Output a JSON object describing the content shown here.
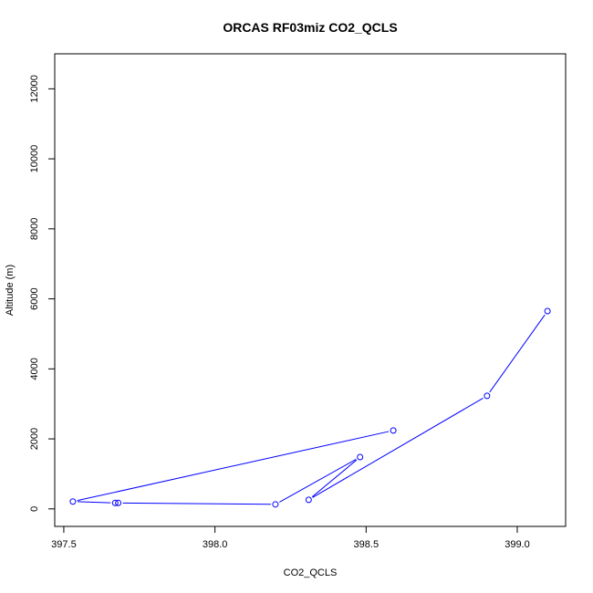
{
  "chart_data": {
    "type": "line",
    "title": "ORCAS RF03miz CO2_QCLS",
    "xlabel": "CO2_QCLS",
    "ylabel": "Altitude (m)",
    "xlim": [
      397.47,
      399.16
    ],
    "ylim": [
      -500,
      13000
    ],
    "xticks": [
      397.5,
      398.0,
      398.5,
      399.0
    ],
    "xtick_labels": [
      "397.5",
      "398.0",
      "398.5",
      "399.0"
    ],
    "yticks": [
      0,
      2000,
      4000,
      6000,
      8000,
      10000,
      12000
    ],
    "ytick_labels": [
      "0",
      "2000",
      "4000",
      "6000",
      "8000",
      "10000",
      "12000"
    ],
    "grid": false,
    "marker": "open-circle",
    "series": [
      {
        "color": "#0000ff",
        "points": [
          {
            "x": 399.1,
            "y": 5650
          },
          {
            "x": 398.9,
            "y": 3230
          },
          {
            "x": 398.31,
            "y": 260
          },
          {
            "x": 398.48,
            "y": 1480
          },
          {
            "x": 398.2,
            "y": 130
          },
          {
            "x": 397.68,
            "y": 170
          },
          {
            "x": 397.67,
            "y": 170
          },
          {
            "x": 397.53,
            "y": 210
          },
          {
            "x": 398.59,
            "y": 2240
          }
        ]
      }
    ]
  }
}
